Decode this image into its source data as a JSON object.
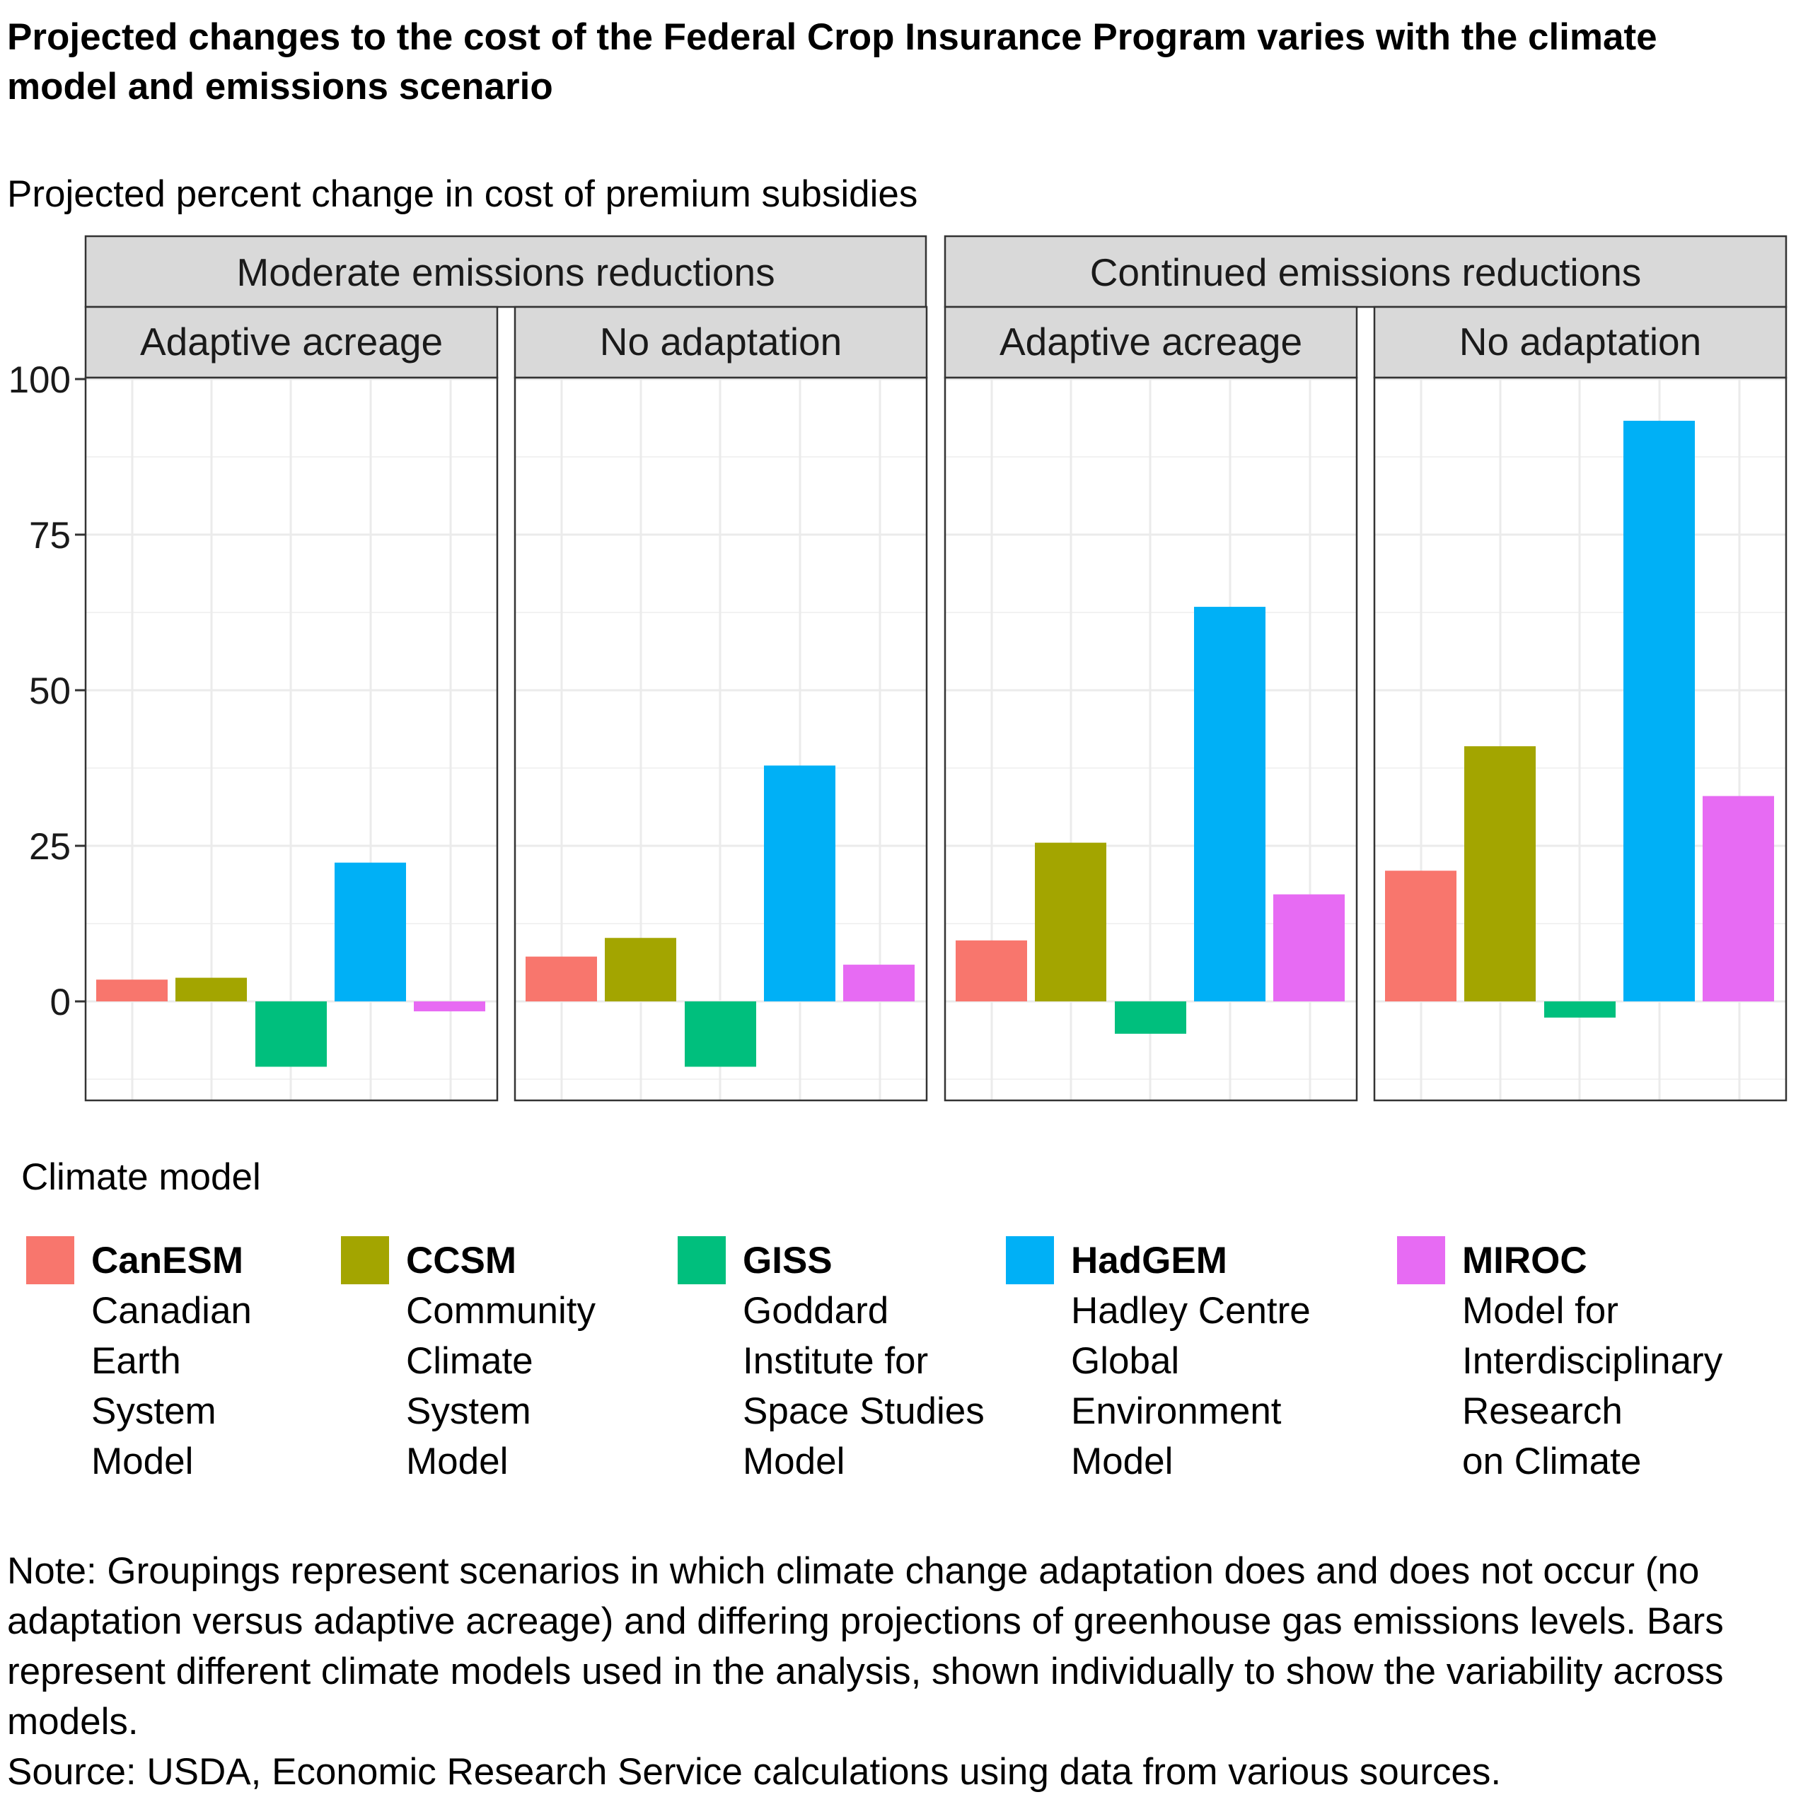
{
  "title": "Projected changes to the cost of the Federal Crop Insurance Program varies with the climate model and emissions scenario",
  "subtitle": "Projected percent change in cost of premium subsidies",
  "legend": {
    "title": "Climate model",
    "items": [
      {
        "code": "CanESM",
        "name": "Canadian\nEarth\nSystem\nModel",
        "color": "#F8766D"
      },
      {
        "code": "CCSM",
        "name": "Community\nClimate\nSystem\nModel",
        "color": "#A3A500"
      },
      {
        "code": "GISS",
        "name": "Goddard\nInstitute for\nSpace Studies\nModel",
        "color": "#00BF7D"
      },
      {
        "code": "HadGEM",
        "name": "Hadley Centre\nGlobal\nEnvironment\nModel",
        "color": "#00B0F6"
      },
      {
        "code": "MIROC",
        "name": "Model for\nInterdisciplinary\nResearch\non Climate",
        "color": "#E76BF3"
      }
    ]
  },
  "note": "Note: Groupings represent scenarios in which climate change adaptation does and does not occur (no adaptation versus adaptive acreage) and differing projections of greenhouse gas emissions levels. Bars represent different climate models used in the analysis, shown individually to show the variability across models.",
  "source": "Source: USDA, Economic Research Service calculations using data from various sources.",
  "chart_data": {
    "type": "bar",
    "facets": {
      "outer": [
        "Moderate emissions reductions",
        "Continued emissions reductions"
      ],
      "inner": [
        "Adaptive acreage",
        "No adaptation"
      ]
    },
    "categories": [
      "CanESM",
      "CCSM",
      "GISS",
      "HadGEM",
      "MIROC"
    ],
    "panels": [
      {
        "outer": "Moderate emissions reductions",
        "inner": "Adaptive acreage",
        "values": [
          3.5,
          3.8,
          -10.5,
          22.3,
          -1.6
        ]
      },
      {
        "outer": "Moderate emissions reductions",
        "inner": "No adaptation",
        "values": [
          7.2,
          10.2,
          -10.5,
          37.9,
          5.9
        ]
      },
      {
        "outer": "Continued emissions reductions",
        "inner": "Adaptive acreage",
        "values": [
          9.8,
          25.5,
          -5.2,
          63.4,
          17.2
        ]
      },
      {
        "outer": "Continued emissions reductions",
        "inner": "No adaptation",
        "values": [
          21.0,
          41.0,
          -2.6,
          93.3,
          33.0
        ]
      }
    ],
    "ylim": [
      -15,
      100
    ],
    "yticks": [
      0,
      25,
      50,
      75,
      100
    ],
    "ytick_labels": [
      "0",
      "25",
      "50",
      "75",
      "100"
    ],
    "xlabel": "",
    "ylabel": "",
    "grid": true,
    "legend_position": "bottom"
  }
}
